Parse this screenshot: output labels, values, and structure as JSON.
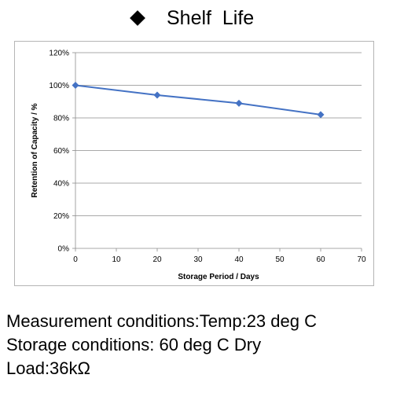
{
  "title": "Shelf  Life",
  "chart_data": {
    "type": "line",
    "x": [
      0,
      20,
      40,
      60
    ],
    "series": [
      {
        "values": [
          100,
          94,
          89,
          82
        ]
      }
    ],
    "xlabel": "Storage Period / Days",
    "ylabel": "Retention of Capacity / %",
    "xlim": [
      0,
      70
    ],
    "ylim": [
      0,
      120
    ],
    "xticks": [
      "0",
      "10",
      "20",
      "30",
      "40",
      "50",
      "60",
      "70"
    ],
    "yticks": [
      "0%",
      "20%",
      "40%",
      "60%",
      "80%",
      "100%",
      "120%"
    ],
    "grid": true,
    "line_color": "#4472c4",
    "marker": "diamond"
  },
  "notes": [
    "Measurement conditions:Temp:23 deg C",
    "Storage conditions: 60 deg C Dry",
    "Load:36kΩ"
  ]
}
